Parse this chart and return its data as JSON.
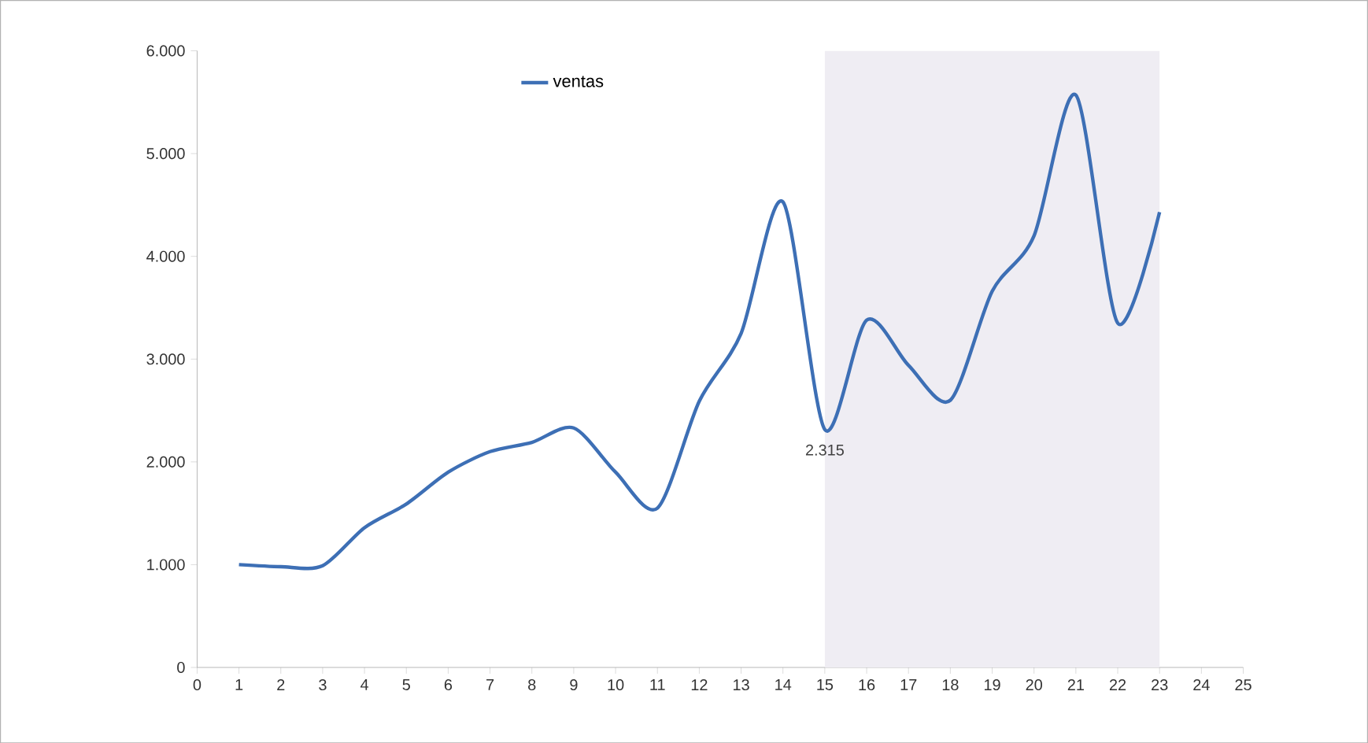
{
  "chart_data": {
    "type": "line",
    "x": [
      1,
      2,
      3,
      4,
      5,
      6,
      7,
      8,
      9,
      10,
      11,
      12,
      13,
      14,
      15,
      16,
      17,
      18,
      19,
      20,
      21,
      22,
      23
    ],
    "series": [
      {
        "name": "ventas",
        "color": "#3d6fb5",
        "values": [
          1000,
          980,
          990,
          1360,
          1590,
          1900,
          2100,
          2190,
          2330,
          1900,
          1550,
          2590,
          3250,
          4530,
          2315,
          3380,
          2940,
          2600,
          3660,
          4200,
          5570,
          3350,
          4430
        ],
        "value_labels": [
          null,
          null,
          null,
          null,
          null,
          null,
          null,
          null,
          null,
          null,
          null,
          null,
          null,
          null,
          "2.315",
          null,
          null,
          null,
          null,
          null,
          null,
          null,
          null
        ]
      }
    ],
    "xlim": [
      0,
      25
    ],
    "xticks": [
      0,
      1,
      2,
      3,
      4,
      5,
      6,
      7,
      8,
      9,
      10,
      11,
      12,
      13,
      14,
      15,
      16,
      17,
      18,
      19,
      20,
      21,
      22,
      23,
      24,
      25
    ],
    "ylim": [
      0,
      6000
    ],
    "yticks": [
      {
        "value": 0,
        "label": "0"
      },
      {
        "value": 1000,
        "label": "1.000"
      },
      {
        "value": 2000,
        "label": "2.000"
      },
      {
        "value": 3000,
        "label": "3.000"
      },
      {
        "value": 4000,
        "label": "4.000"
      },
      {
        "value": 5000,
        "label": "5.000"
      },
      {
        "value": 6000,
        "label": "6.000"
      }
    ],
    "bands": [
      {
        "axis": "x",
        "from": 15,
        "to": 23,
        "color": "#efedf3"
      }
    ],
    "legend": "top",
    "grid": false,
    "marker": "none",
    "line_style": "solid"
  }
}
